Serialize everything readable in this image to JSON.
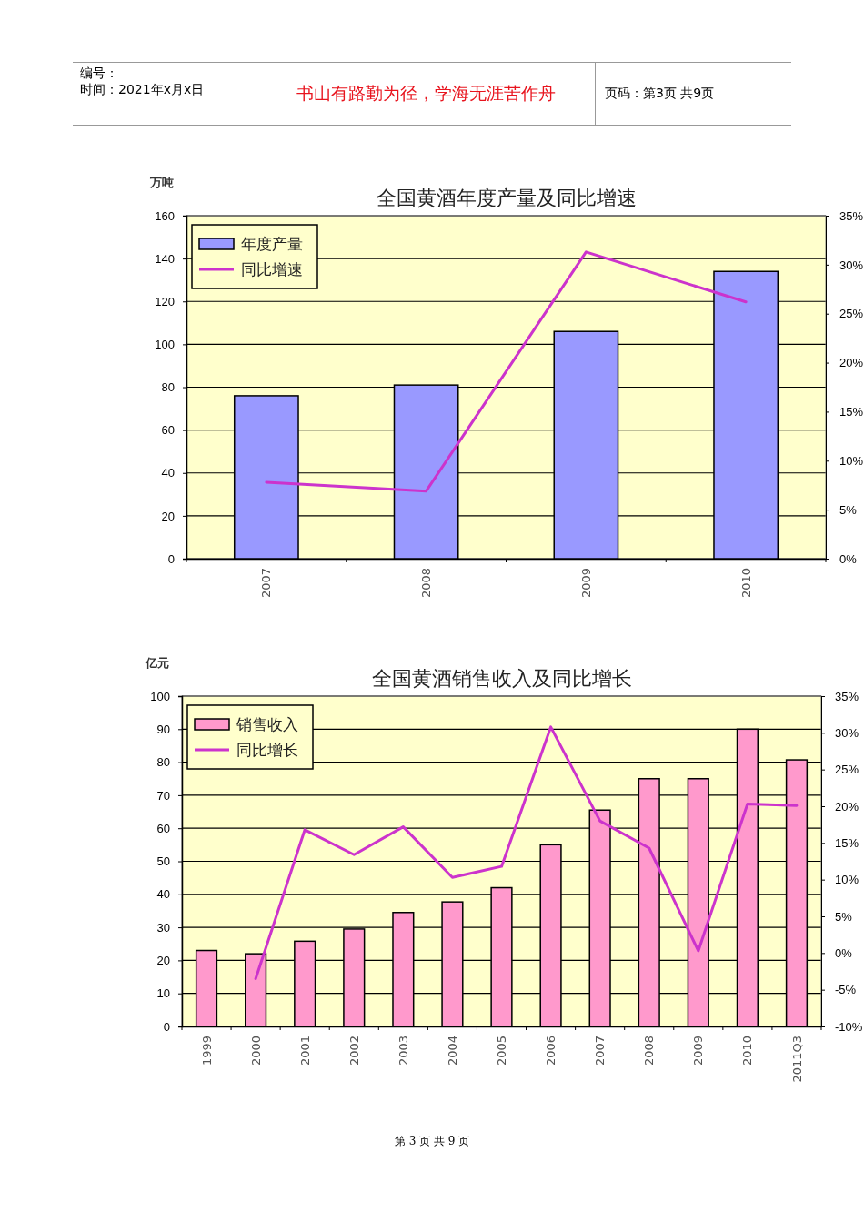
{
  "chart_data": [
    {
      "type": "bar",
      "title": "全国黄酒年度产量及同比增速",
      "ylabel": "万吨",
      "categories": [
        "2007",
        "2008",
        "2009",
        "2010"
      ],
      "series": [
        {
          "name": "年度产量",
          "color": "#9999ff",
          "values": [
            76,
            81,
            106,
            134
          ]
        },
        {
          "name": "同比增速",
          "type": "line",
          "axis": "y2",
          "color": "#cc33cc",
          "values": [
            7.8,
            6.9,
            31.3,
            26.2
          ]
        }
      ],
      "ylim": [
        0,
        160
      ],
      "yticks": [
        0,
        20,
        40,
        60,
        80,
        100,
        120,
        140,
        160
      ],
      "y2lim": [
        0,
        35
      ],
      "y2ticks": [
        {
          "value": 0,
          "label": "0%"
        },
        {
          "value": 5,
          "label": "5%"
        },
        {
          "value": 10,
          "label": "10%"
        },
        {
          "value": 15,
          "label": "15%"
        },
        {
          "value": 20,
          "label": "20%"
        },
        {
          "value": 25,
          "label": "25%"
        },
        {
          "value": 30,
          "label": "30%"
        },
        {
          "value": 35,
          "label": "35%"
        }
      ],
      "grid": "y",
      "legend": "top left",
      "annotations": [
        "编号：",
        "时间：2021年x月x日",
        "书山有路勤为径，学海无涯苦作舟",
        "页码：第3页 共9页"
      ]
    },
    {
      "type": "bar",
      "title": "全国黄酒销售收入及同比增长",
      "ylabel": "亿元",
      "categories": [
        "1999",
        "2000",
        "2001",
        "2002",
        "2003",
        "2004",
        "2005",
        "2006",
        "2007",
        "2008",
        "2009",
        "2010",
        "2011Q3"
      ],
      "series": [
        {
          "name": "销售收入",
          "color": "#ff99cc",
          "values": [
            23,
            22,
            25.8,
            29.5,
            34.5,
            37.7,
            42,
            55,
            65.5,
            75,
            75,
            90,
            80.7
          ]
        },
        {
          "name": "同比增长",
          "type": "line",
          "axis": "y2",
          "color": "#cc33cc",
          "values": [
            null,
            -3.5,
            16.8,
            13.4,
            17.2,
            10.3,
            11.8,
            30.8,
            18,
            14.3,
            0.3,
            20.3,
            20.1
          ]
        }
      ],
      "ylim": [
        0,
        100
      ],
      "yticks": [
        0,
        10,
        20,
        30,
        40,
        50,
        60,
        70,
        80,
        90,
        100
      ],
      "y2lim": [
        -10,
        35
      ],
      "y2ticks": [
        {
          "value": -10,
          "label": "-10%"
        },
        {
          "value": -5,
          "label": "-5%"
        },
        {
          "value": 0,
          "label": "0%"
        },
        {
          "value": 5,
          "label": "5%"
        },
        {
          "value": 10,
          "label": "10%"
        },
        {
          "value": 15,
          "label": "15%"
        },
        {
          "value": 20,
          "label": "20%"
        },
        {
          "value": 25,
          "label": "25%"
        },
        {
          "value": 30,
          "label": "30%"
        },
        {
          "value": 35,
          "label": "35%"
        }
      ],
      "grid": "y",
      "legend": "top left",
      "annotations": [
        "第 3 页 共 9 页"
      ]
    }
  ]
}
